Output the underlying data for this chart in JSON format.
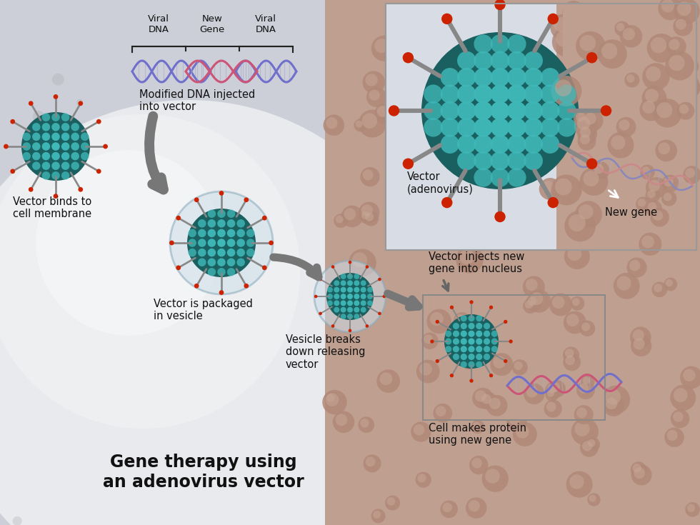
{
  "title": "Gene therapy using\nan adenovirus vector",
  "title_fontsize": 17,
  "title_fontweight": "bold",
  "title_color": "#111111",
  "bg_left": "#d8dae0",
  "bg_right": "#c0a090",
  "sphere_color": "#e4e6ea",
  "sphere_highlight": "#f4f5f7",
  "inset_bg": "#dde2e8",
  "inset_border": "#999999",
  "labels": {
    "vector_binds": "Vector binds to\ncell membrane",
    "modified_dna": "Modified DNA injected\ninto vector",
    "packaged": "Vector is packaged\nin vesicle",
    "vesicle_breaks": "Vesicle breaks\ndown releasing\nvector",
    "vector_injects": "Vector injects new\ngene into nucleus",
    "cell_makes": "Cell makes protein\nusing new gene",
    "vector_adenovirus": "Vector\n(adenovirus)",
    "new_gene": "New gene",
    "viral_dna_left": "Viral\nDNA",
    "new_gene_label": "New\nGene",
    "viral_dna_right": "Viral\nDNA"
  },
  "label_fontsize": 10.5,
  "teal_dark": "#1a6060",
  "teal_mid": "#1a8888",
  "teal_light": "#40b8b8",
  "spike_color": "#888888",
  "red_dot": "#cc2200",
  "dna_blue": "#7070cc",
  "dna_pink": "#cc5577",
  "dna_red": "#cc3333",
  "arrow_color": "#555555",
  "bump_color": "#b08878",
  "bump_light": "#c8a898",
  "vesicle_fill": "#ccdde8",
  "vesicle_edge": "#88aabb"
}
